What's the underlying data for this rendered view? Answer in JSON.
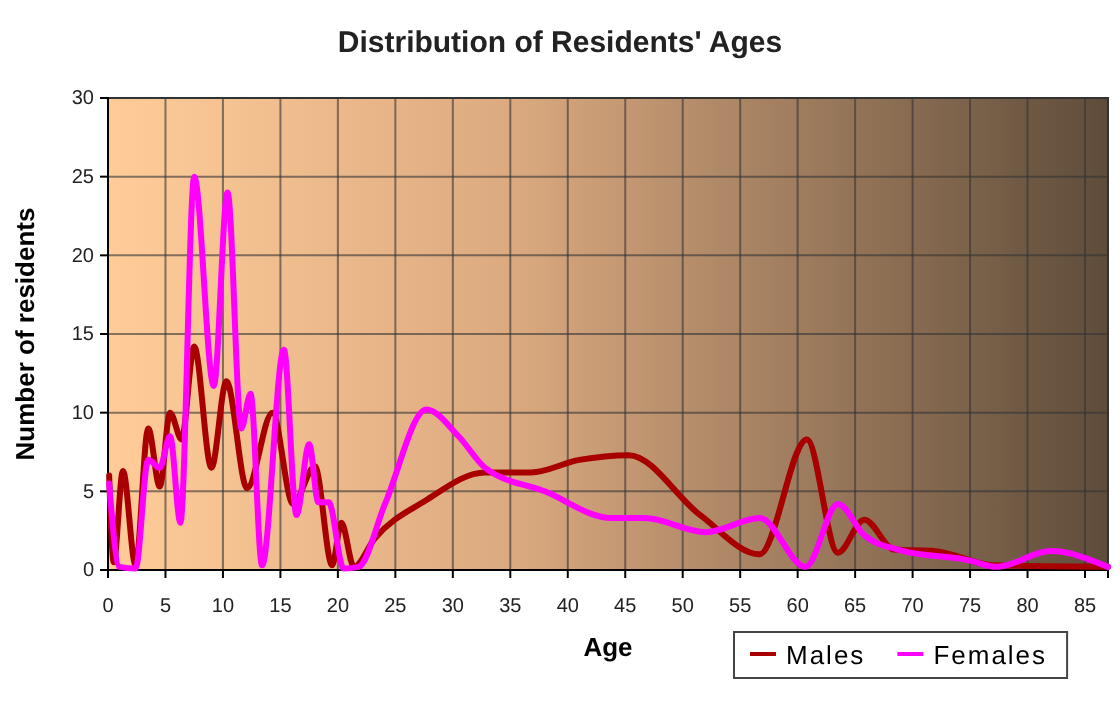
{
  "chart_data": {
    "type": "line",
    "title": "Distribution of Residents' Ages",
    "xlabel": "Age",
    "ylabel": "Number of residents",
    "xlim": [
      0,
      87
    ],
    "xticks": [
      0,
      5,
      10,
      15,
      20,
      25,
      30,
      35,
      40,
      45,
      50,
      55,
      60,
      65,
      70,
      75,
      80,
      85
    ],
    "ylim": [
      0,
      30
    ],
    "yticks": [
      0,
      5,
      10,
      15,
      20,
      25,
      30
    ],
    "grid": true,
    "legend": "bottom right",
    "series": [
      {
        "name": "Males",
        "color": "#a80000",
        "x": [
          0.1,
          0.5,
          1.3,
          2.4,
          3.5,
          4.5,
          5.4,
          6.4,
          7.5,
          9,
          10.3,
          12.1,
          14.3,
          16.1,
          18,
          19.5,
          20.3,
          21.4,
          23.2,
          27.6,
          32.8,
          36.8,
          41,
          45.3,
          51.5,
          56.7,
          60.8,
          63.5,
          65.8,
          68.4,
          72,
          77,
          87
        ],
        "values": [
          6,
          0.5,
          6.3,
          0.3,
          9,
          5.3,
          10,
          8.3,
          14.2,
          6.5,
          12,
          5.2,
          10,
          4.2,
          6.6,
          0.3,
          3,
          0.2,
          2,
          4.4,
          6.2,
          6.2,
          7,
          7.3,
          3.5,
          1,
          8.3,
          1.1,
          3.2,
          1.3,
          1.2,
          0.3,
          0.2
        ]
      },
      {
        "name": "Females",
        "color": "#ff00ff",
        "x": [
          0.1,
          1,
          2.4,
          3.5,
          4.5,
          5.4,
          6.3,
          7.5,
          9.2,
          10.4,
          11.6,
          12.4,
          13.4,
          15.3,
          16.4,
          17.5,
          18.3,
          19.2,
          20.5,
          21.8,
          24.1,
          27.7,
          30.5,
          32.8,
          38,
          43.8,
          46.7,
          52,
          56.7,
          60.7,
          63.5,
          65.8,
          68.7,
          75,
          77.3,
          82,
          87
        ],
        "values": [
          5.5,
          0.2,
          0.1,
          7,
          6.5,
          8.5,
          3,
          25,
          11.7,
          24,
          9,
          11.2,
          0.3,
          14,
          3.5,
          8,
          4.3,
          4.3,
          0.1,
          0.2,
          4.2,
          10.2,
          8.5,
          6.5,
          5,
          3.3,
          3.3,
          2.4,
          3.3,
          0.2,
          4.2,
          2.2,
          1.3,
          0.6,
          0.2,
          1.2,
          0.2
        ]
      }
    ]
  }
}
